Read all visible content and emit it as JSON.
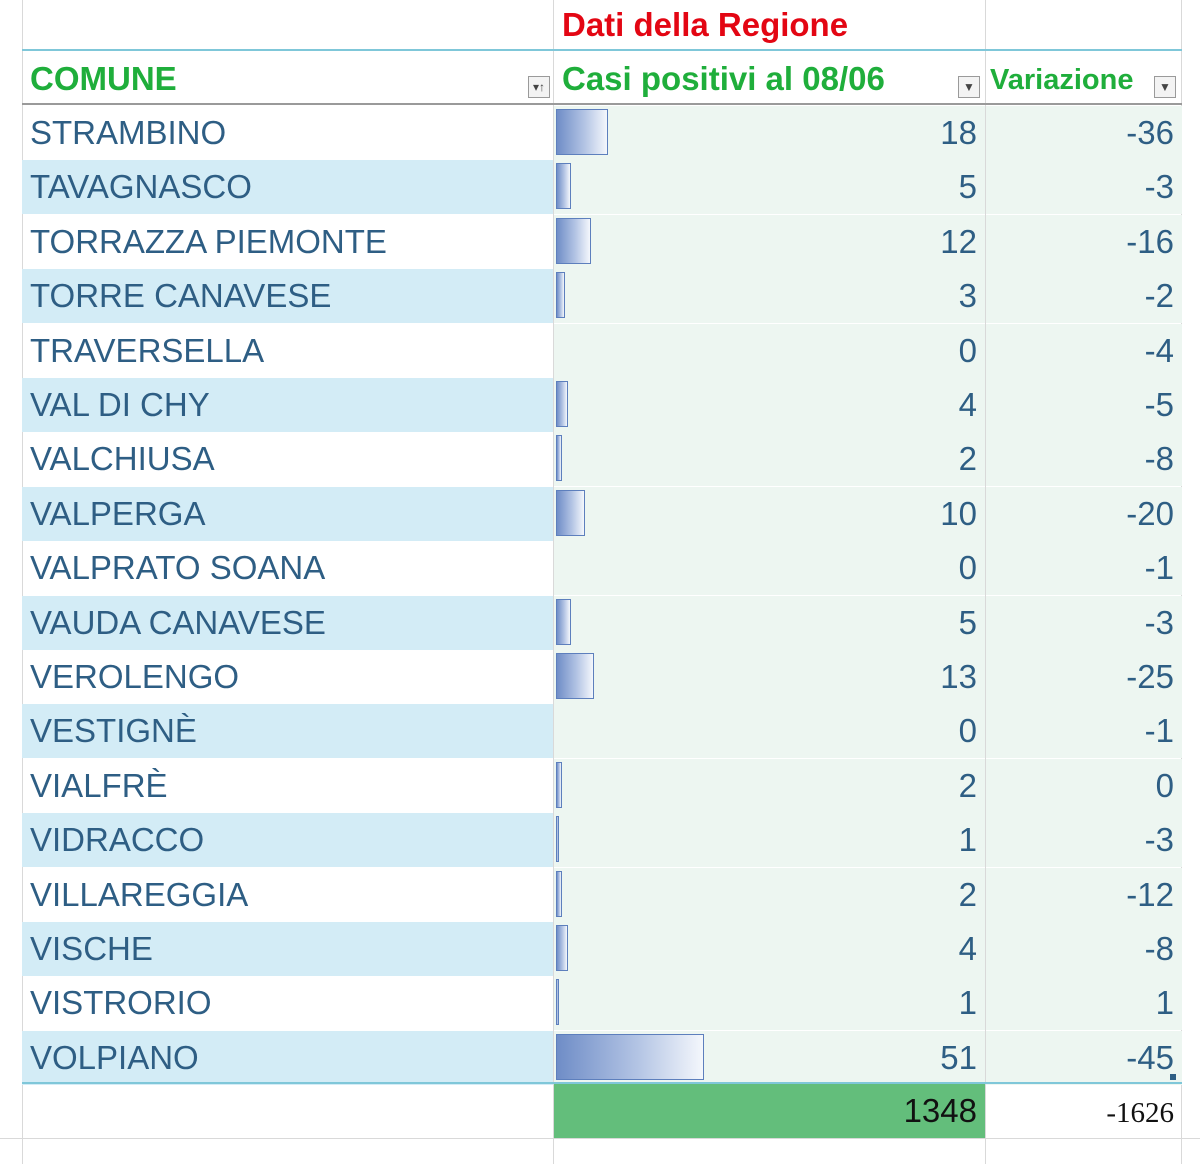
{
  "title": "Dati della Regione",
  "headers": {
    "comune": "COMUNE",
    "casi": "Casi positivi al 08/06",
    "variazione": "Variazione"
  },
  "filter_icons": {
    "comune": "sort-filter-icon",
    "casi": "dropdown-filter-icon",
    "variazione": "dropdown-filter-icon"
  },
  "rows": [
    {
      "comune": "STRAMBINO",
      "casi": "18",
      "variazione": "-36"
    },
    {
      "comune": "TAVAGNASCO",
      "casi": "5",
      "variazione": "-3"
    },
    {
      "comune": "TORRAZZA PIEMONTE",
      "casi": "12",
      "variazione": "-16"
    },
    {
      "comune": "TORRE CANAVESE",
      "casi": "3",
      "variazione": "-2"
    },
    {
      "comune": "TRAVERSELLA",
      "casi": "0",
      "variazione": "-4"
    },
    {
      "comune": "VAL DI CHY",
      "casi": "4",
      "variazione": "-5"
    },
    {
      "comune": "VALCHIUSA",
      "casi": "2",
      "variazione": "-8"
    },
    {
      "comune": "VALPERGA",
      "casi": "10",
      "variazione": "-20"
    },
    {
      "comune": "VALPRATO SOANA",
      "casi": "0",
      "variazione": "-1"
    },
    {
      "comune": "VAUDA CANAVESE",
      "casi": "5",
      "variazione": "-3"
    },
    {
      "comune": "VEROLENGO",
      "casi": "13",
      "variazione": "-25"
    },
    {
      "comune": "VESTIGNÈ",
      "casi": "0",
      "variazione": "-1"
    },
    {
      "comune": "VIALFRÈ",
      "casi": "2",
      "variazione": "0"
    },
    {
      "comune": "VIDRACCO",
      "casi": "1",
      "variazione": "-3"
    },
    {
      "comune": "VILLAREGGIA",
      "casi": "2",
      "variazione": "-12"
    },
    {
      "comune": "VISCHE",
      "casi": "4",
      "variazione": "-8"
    },
    {
      "comune": "VISTRORIO",
      "casi": "1",
      "variazione": "1"
    },
    {
      "comune": "VOLPIANO",
      "casi": "51",
      "variazione": "-45"
    }
  ],
  "totals": {
    "casi": "1348",
    "variazione": "-1626"
  },
  "colors": {
    "title": "#e30613",
    "header": "#1fae3b",
    "text": "#2e5e84",
    "band": "#d3ecf6",
    "total_fill": "#63be7b",
    "bar": "#6f8dc7"
  }
}
